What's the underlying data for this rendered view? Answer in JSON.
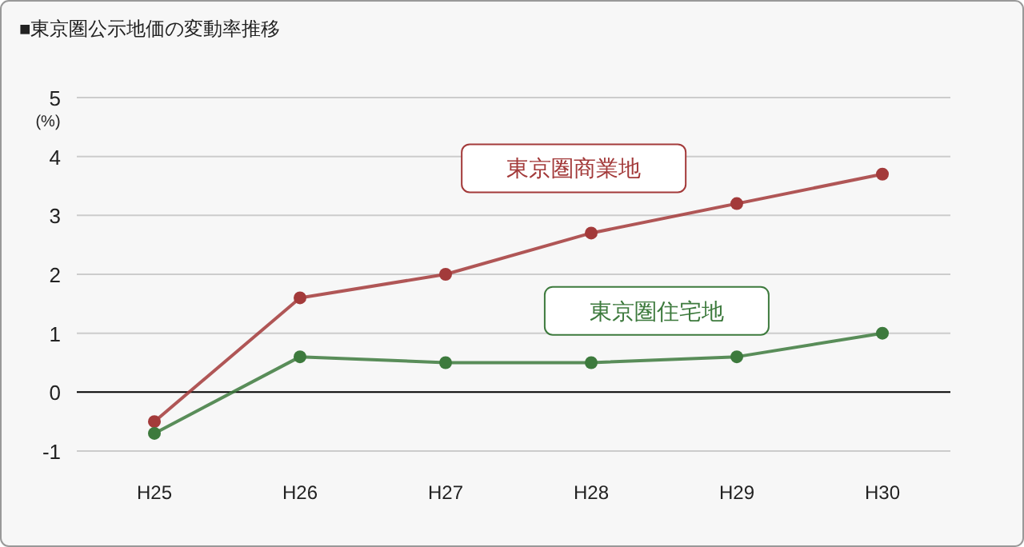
{
  "chart_data": {
    "type": "line",
    "title": "■東京圏公示地価の変動率推移",
    "ylabel": "(%)",
    "categories": [
      "H25",
      "H26",
      "H27",
      "H28",
      "H29",
      "H30"
    ],
    "series": [
      {
        "name": "東京圏商業地",
        "color": "#a33a3a",
        "values": [
          -0.5,
          1.6,
          2.0,
          2.7,
          3.2,
          3.7
        ]
      },
      {
        "name": "東京圏住宅地",
        "color": "#3d7a3d",
        "values": [
          -0.7,
          0.6,
          0.5,
          0.5,
          0.6,
          1.0
        ]
      }
    ],
    "ylim": [
      -1,
      5
    ],
    "yticks": [
      -1,
      0,
      1,
      2,
      3,
      4,
      5
    ],
    "grid": "y",
    "marker": "circle",
    "line_style": "solid"
  }
}
